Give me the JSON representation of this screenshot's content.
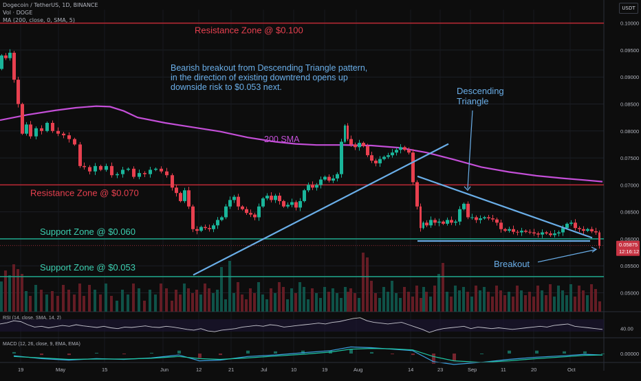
{
  "header": {
    "symbol_line": "Dogecoin / TetherUS, 1D, BINANCE",
    "volume_line": "Vol · DOGE",
    "ma_line": "MA (200, close, 0, SMA, 5)",
    "currency_button": "USDT"
  },
  "chart_data": {
    "type": "candlestick",
    "symbol": "DOGEUSDT",
    "timeframe": "1D",
    "exchange": "BINANCE",
    "y_axis_ticks": [
      "0.10000",
      "0.09500",
      "0.09000",
      "0.08500",
      "0.08000",
      "0.07500",
      "0.07000",
      "0.06500",
      "0.06000",
      "0.05500",
      "0.05000"
    ],
    "ylim": [
      0.0465,
      0.1025
    ],
    "x_axis_ticks": [
      "19",
      "May",
      "15",
      "Jun",
      "12",
      "21",
      "Jul",
      "10",
      "19",
      "Aug",
      "14",
      "23",
      "Sep",
      "11",
      "20",
      "Oct"
    ],
    "price_path": [
      [
        0,
        0.0915
      ],
      [
        6,
        0.094
      ],
      [
        12,
        0.0935
      ],
      [
        18,
        0.0945
      ],
      [
        24,
        0.0895
      ],
      [
        30,
        0.085
      ],
      [
        36,
        0.0795
      ],
      [
        42,
        0.0812
      ],
      [
        50,
        0.079
      ],
      [
        58,
        0.0805
      ],
      [
        66,
        0.08
      ],
      [
        74,
        0.0815
      ],
      [
        82,
        0.08
      ],
      [
        90,
        0.0795
      ],
      [
        98,
        0.0792
      ],
      [
        106,
        0.0785
      ],
      [
        114,
        0.0775
      ],
      [
        120,
        0.0735
      ],
      [
        128,
        0.0733
      ],
      [
        136,
        0.0725
      ],
      [
        144,
        0.0735
      ],
      [
        152,
        0.0728
      ],
      [
        160,
        0.0735
      ],
      [
        168,
        0.0718
      ],
      [
        176,
        0.072
      ],
      [
        184,
        0.0728
      ],
      [
        192,
        0.073
      ],
      [
        200,
        0.0715
      ],
      [
        208,
        0.0722
      ],
      [
        216,
        0.072
      ],
      [
        224,
        0.0728
      ],
      [
        232,
        0.073
      ],
      [
        240,
        0.0725
      ],
      [
        248,
        0.0718
      ],
      [
        254,
        0.0695
      ],
      [
        260,
        0.0685
      ],
      [
        266,
        0.067
      ],
      [
        272,
        0.069
      ],
      [
        278,
        0.066
      ],
      [
        284,
        0.0618
      ],
      [
        290,
        0.0615
      ],
      [
        296,
        0.0622
      ],
      [
        302,
        0.062
      ],
      [
        308,
        0.0618
      ],
      [
        314,
        0.0625
      ],
      [
        320,
        0.0635
      ],
      [
        326,
        0.064
      ],
      [
        332,
        0.066
      ],
      [
        338,
        0.0672
      ],
      [
        344,
        0.0678
      ],
      [
        350,
        0.066
      ],
      [
        356,
        0.0655
      ],
      [
        362,
        0.0648
      ],
      [
        368,
        0.0645
      ],
      [
        374,
        0.064
      ],
      [
        380,
        0.066
      ],
      [
        386,
        0.0675
      ],
      [
        392,
        0.068
      ],
      [
        398,
        0.0672
      ],
      [
        404,
        0.068
      ],
      [
        410,
        0.067
      ],
      [
        416,
        0.066
      ],
      [
        422,
        0.0663
      ],
      [
        428,
        0.0668
      ],
      [
        434,
        0.0658
      ],
      [
        440,
        0.067
      ],
      [
        446,
        0.069
      ],
      [
        452,
        0.07
      ],
      [
        458,
        0.0695
      ],
      [
        464,
        0.07
      ],
      [
        470,
        0.071
      ],
      [
        476,
        0.0715
      ],
      [
        482,
        0.0708
      ],
      [
        488,
        0.0712
      ],
      [
        494,
        0.072
      ],
      [
        500,
        0.078
      ],
      [
        504,
        0.081
      ],
      [
        508,
        0.0785
      ],
      [
        514,
        0.0775
      ],
      [
        520,
        0.077
      ],
      [
        526,
        0.0778
      ],
      [
        532,
        0.0772
      ],
      [
        538,
        0.0755
      ],
      [
        544,
        0.0745
      ],
      [
        550,
        0.074
      ],
      [
        556,
        0.0748
      ],
      [
        562,
        0.0752
      ],
      [
        568,
        0.0755
      ],
      [
        574,
        0.076
      ],
      [
        580,
        0.0765
      ],
      [
        586,
        0.077
      ],
      [
        592,
        0.0765
      ],
      [
        598,
        0.076
      ],
      [
        604,
        0.0705
      ],
      [
        610,
        0.066
      ],
      [
        614,
        0.062
      ],
      [
        618,
        0.063
      ],
      [
        624,
        0.0625
      ],
      [
        630,
        0.0635
      ],
      [
        636,
        0.063
      ],
      [
        642,
        0.0632
      ],
      [
        648,
        0.0628
      ],
      [
        654,
        0.0635
      ],
      [
        660,
        0.063
      ],
      [
        666,
        0.0632
      ],
      [
        672,
        0.0655
      ],
      [
        678,
        0.0665
      ],
      [
        684,
        0.064
      ],
      [
        690,
        0.064
      ],
      [
        696,
        0.0635
      ],
      [
        702,
        0.0638
      ],
      [
        708,
        0.064
      ],
      [
        714,
        0.0638
      ],
      [
        720,
        0.0636
      ],
      [
        726,
        0.063
      ],
      [
        732,
        0.0618
      ],
      [
        738,
        0.0615
      ],
      [
        744,
        0.0618
      ],
      [
        750,
        0.0613
      ],
      [
        756,
        0.0612
      ],
      [
        762,
        0.0615
      ],
      [
        768,
        0.0613
      ],
      [
        774,
        0.0612
      ],
      [
        780,
        0.061
      ],
      [
        786,
        0.0608
      ],
      [
        792,
        0.0612
      ],
      [
        798,
        0.061
      ],
      [
        804,
        0.0607
      ],
      [
        810,
        0.061
      ],
      [
        816,
        0.0612
      ],
      [
        822,
        0.062
      ],
      [
        828,
        0.0628
      ],
      [
        834,
        0.063
      ],
      [
        840,
        0.062
      ],
      [
        846,
        0.0618
      ],
      [
        852,
        0.0615
      ],
      [
        858,
        0.0618
      ],
      [
        864,
        0.0614
      ],
      [
        870,
        0.0612
      ],
      [
        874,
        0.05875
      ]
    ],
    "sma_200": [
      [
        0,
        0.082
      ],
      [
        40,
        0.083
      ],
      [
        80,
        0.0838
      ],
      [
        110,
        0.0843
      ],
      [
        140,
        0.0846
      ],
      [
        160,
        0.0845
      ],
      [
        180,
        0.0837
      ],
      [
        200,
        0.0825
      ],
      [
        240,
        0.0815
      ],
      [
        280,
        0.0807
      ],
      [
        320,
        0.0799
      ],
      [
        360,
        0.0788
      ],
      [
        400,
        0.078
      ],
      [
        430,
        0.0776
      ],
      [
        460,
        0.0774
      ],
      [
        500,
        0.0774
      ],
      [
        540,
        0.0773
      ],
      [
        580,
        0.0769
      ],
      [
        620,
        0.076
      ],
      [
        660,
        0.0747
      ],
      [
        700,
        0.0733
      ],
      [
        740,
        0.0724
      ],
      [
        780,
        0.0717
      ],
      [
        820,
        0.0712
      ],
      [
        850,
        0.0709
      ],
      [
        876,
        0.0706
      ]
    ],
    "current_price_label": "0.05875",
    "countdown_label": "12:16:12",
    "horizontal_levels": [
      {
        "price": 0.1,
        "label": "Resistance Zone @ $0.100",
        "color": "#b22833",
        "text_color": "#e8404f"
      },
      {
        "price": 0.07,
        "label": "Resistance Zone @ $0.070",
        "color": "#b22833",
        "text_color": "#e8404f"
      },
      {
        "price": 0.06,
        "label": "Support Zone @ $0.060",
        "color": "#1e9e85",
        "text_color": "#3ccfb0"
      },
      {
        "price": 0.053,
        "label": "Support Zone @ $0.053",
        "color": "#1e9e85",
        "text_color": "#3ccfb0"
      }
    ],
    "sma_label": "200 SMA",
    "annotations": {
      "main_text": [
        "Bearish breakout from Descending Triangle pattern,",
        "in the direction of existing downtrend opens up",
        "downside risk to $0.053 next."
      ],
      "triangle_text": [
        "Descending",
        "Triangle"
      ],
      "breakout_text": "Breakout"
    },
    "rsi": {
      "label": "RSI (14, close, SMA, 14, 2)",
      "axis_label": "40.00",
      "values": [
        52,
        55,
        60,
        58,
        50,
        44,
        46,
        42,
        45,
        48,
        46,
        50,
        47,
        45,
        43,
        46,
        42,
        40,
        44,
        43,
        45,
        47,
        44,
        43,
        46,
        44,
        41,
        38,
        36,
        40,
        34,
        32,
        36,
        38,
        40,
        44,
        46,
        48,
        46,
        50,
        48,
        44,
        46,
        48,
        50,
        52,
        54,
        52,
        56,
        58,
        62,
        66,
        68,
        60,
        56,
        54,
        52,
        54,
        56,
        50,
        44,
        38,
        30,
        36,
        40,
        42,
        44,
        46,
        40,
        44,
        42,
        40,
        42,
        40,
        38,
        40,
        42,
        44,
        46,
        44,
        48,
        50,
        52,
        46,
        44,
        42,
        40,
        38
      ]
    },
    "macd": {
      "label": "MACD (12, 26, close, 9, EMA, EMA)",
      "axis_label": "0.00000",
      "macd_line": [
        [
          20,
          -0.0006
        ],
        [
          60,
          -0.0014
        ],
        [
          100,
          -0.0018
        ],
        [
          140,
          -0.0014
        ],
        [
          180,
          -0.0016
        ],
        [
          220,
          -0.0012
        ],
        [
          260,
          -0.0004
        ],
        [
          290,
          -0.002
        ],
        [
          320,
          -0.0018
        ],
        [
          360,
          -0.0008
        ],
        [
          400,
          -0.0004
        ],
        [
          440,
          0.0002
        ],
        [
          480,
          0.0008
        ],
        [
          510,
          0.0018
        ],
        [
          540,
          0.0016
        ],
        [
          570,
          0.0012
        ],
        [
          600,
          0.0008
        ],
        [
          630,
          -0.0022
        ],
        [
          660,
          -0.003
        ],
        [
          700,
          -0.0024
        ],
        [
          740,
          -0.0016
        ],
        [
          780,
          -0.001
        ],
        [
          820,
          -0.0006
        ],
        [
          850,
          -0.0002
        ],
        [
          876,
          -0.0004
        ]
      ],
      "signal_line": [
        [
          20,
          -0.0008
        ],
        [
          60,
          -0.0012
        ],
        [
          100,
          -0.0016
        ],
        [
          140,
          -0.0015
        ],
        [
          180,
          -0.0015
        ],
        [
          220,
          -0.0013
        ],
        [
          260,
          -0.0008
        ],
        [
          290,
          -0.0014
        ],
        [
          320,
          -0.0016
        ],
        [
          360,
          -0.0012
        ],
        [
          400,
          -0.0007
        ],
        [
          440,
          -0.0002
        ],
        [
          480,
          0.0004
        ],
        [
          510,
          0.0012
        ],
        [
          540,
          0.0014
        ],
        [
          570,
          0.0013
        ],
        [
          600,
          0.001
        ],
        [
          630,
          -0.0008
        ],
        [
          660,
          -0.002
        ],
        [
          700,
          -0.0024
        ],
        [
          740,
          -0.002
        ],
        [
          780,
          -0.0014
        ],
        [
          820,
          -0.0009
        ],
        [
          850,
          -0.0005
        ],
        [
          876,
          -0.0004
        ]
      ]
    }
  },
  "colors": {
    "background": "#0d0d0d",
    "candle_up": "#1ab59a",
    "candle_down": "#e8404f",
    "sma": "#c44fd8",
    "drawing": "#6aaee8",
    "axis_text": "#b2b5be"
  }
}
